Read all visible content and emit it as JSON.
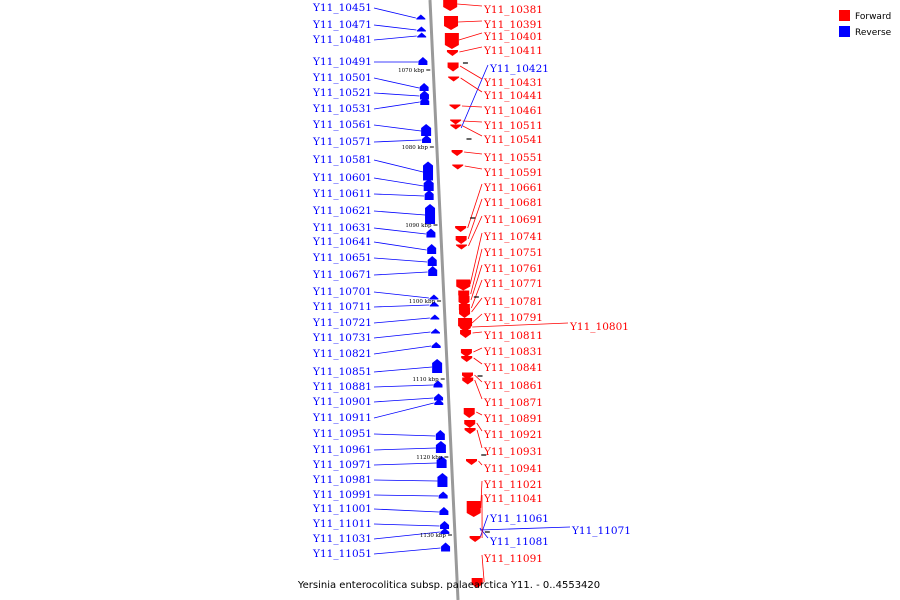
{
  "title": "Yersinia enterocolitica subsp. palaearctica Y11. - 0..4553420",
  "legend": [
    {
      "label": "Forward",
      "color": "#ff0000"
    },
    {
      "label": "Reverse",
      "color": "#0000ff"
    }
  ],
  "colors": {
    "forward": "#ff0000",
    "reverse": "#0000ff",
    "backbone": "#999999"
  },
  "scale_labels": [
    "1070 kbp",
    "1080 kbp",
    "1090 kbp",
    "1100 kbp",
    "1110 kbp",
    "1120 kbp",
    "1130 kbp"
  ],
  "reverse_genes": [
    "Y11_10451",
    "Y11_10471",
    "Y11_10481",
    "Y11_10491",
    "Y11_10501",
    "Y11_10521",
    "Y11_10531",
    "Y11_10561",
    "Y11_10571",
    "Y11_10581",
    "Y11_10601",
    "Y11_10611",
    "Y11_10621",
    "Y11_10631",
    "Y11_10641",
    "Y11_10651",
    "Y11_10671",
    "Y11_10701",
    "Y11_10711",
    "Y11_10721",
    "Y11_10731",
    "Y11_10821",
    "Y11_10851",
    "Y11_10881",
    "Y11_10901",
    "Y11_10911",
    "Y11_10951",
    "Y11_10961",
    "Y11_10971",
    "Y11_10981",
    "Y11_10991",
    "Y11_11001",
    "Y11_11011",
    "Y11_11031",
    "Y11_11051",
    "Y11_10421",
    "Y11_11061",
    "Y11_11071",
    "Y11_11081"
  ],
  "forward_genes": [
    "Y11_10381",
    "Y11_10391",
    "Y11_10401",
    "Y11_10411",
    "Y11_10431",
    "Y11_10441",
    "Y11_10461",
    "Y11_10511",
    "Y11_10541",
    "Y11_10551",
    "Y11_10591",
    "Y11_10661",
    "Y11_10681",
    "Y11_10691",
    "Y11_10741",
    "Y11_10751",
    "Y11_10761",
    "Y11_10771",
    "Y11_10781",
    "Y11_10791",
    "Y11_10801",
    "Y11_10811",
    "Y11_10831",
    "Y11_10841",
    "Y11_10861",
    "Y11_10871",
    "Y11_10891",
    "Y11_10921",
    "Y11_10931",
    "Y11_10941",
    "Y11_11021",
    "Y11_11041",
    "Y11_11091"
  ]
}
